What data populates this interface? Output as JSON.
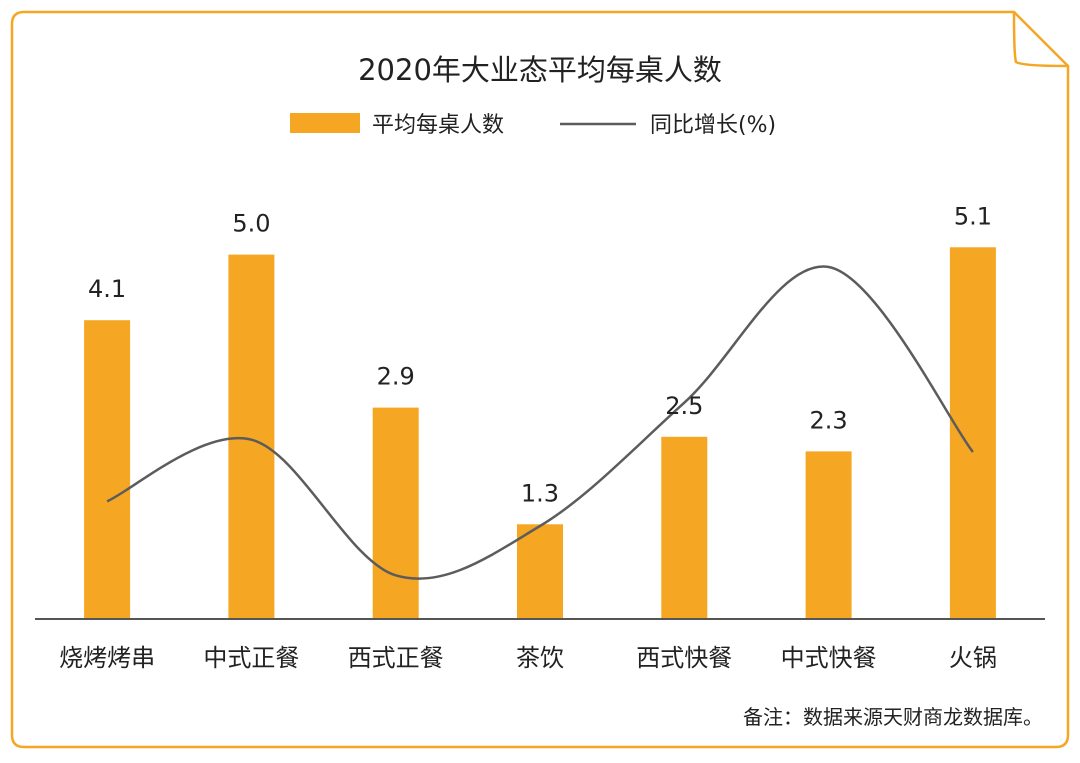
{
  "chart_data": {
    "type": "bar",
    "title": "2020年大业态平均每桌人数",
    "categories": [
      "烧烤烤串",
      "中式正餐",
      "西式正餐",
      "茶饮",
      "西式快餐",
      "中式快餐",
      "火锅"
    ],
    "series": [
      {
        "name": "平均每桌人数",
        "type": "bar",
        "values": [
          4.1,
          5.0,
          2.9,
          1.3,
          2.5,
          2.3,
          5.1
        ],
        "data_labels": [
          "4.1",
          "5.0",
          "2.9",
          "1.3",
          "2.5",
          "2.3",
          "5.1"
        ]
      },
      {
        "name": "同比增长(%)",
        "type": "line",
        "smooth": true,
        "axis": "secondary",
        "values": [
          -2.0,
          3.0,
          -8.0,
          -4.0,
          6.0,
          17.0,
          2.0
        ]
      }
    ],
    "ylim": [
      0,
      5.2
    ],
    "secondary_ylim": [
      -10,
      20
    ],
    "legend_position": "top-center",
    "grid": false,
    "note": "备注：数据来源天财商龙数据库。"
  },
  "colors": {
    "bar": "#F5A623",
    "line": "#5C5C5C",
    "frame": "#F5A623",
    "baseline": "#555555",
    "text": "#222222"
  }
}
